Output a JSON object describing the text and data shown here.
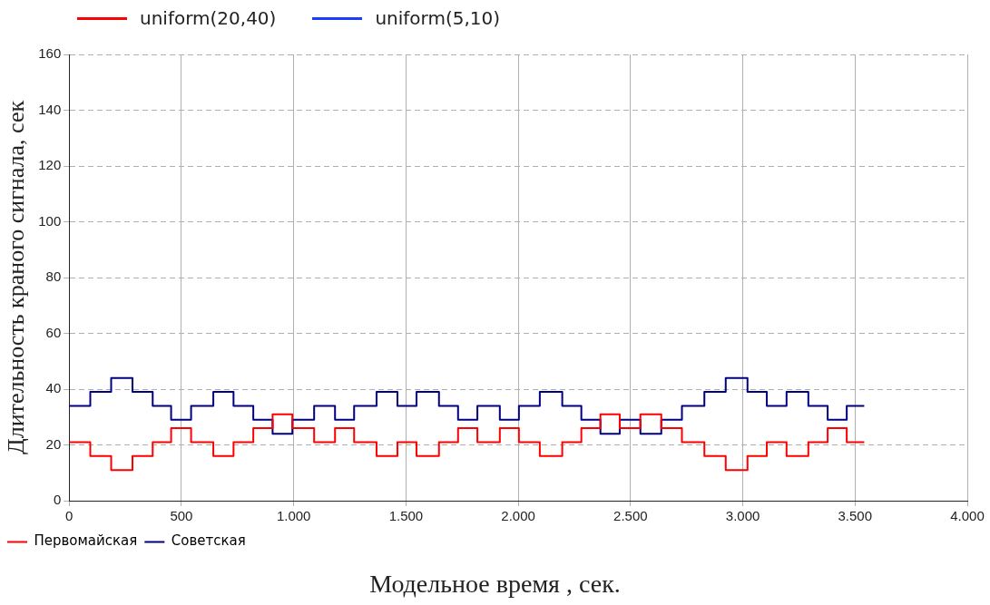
{
  "chart_data": {
    "type": "step",
    "xlabel": "Модельное время , сек.",
    "ylabel": "Длительность краного сигнала, сек",
    "annotations": [
      "uniform(20,40)",
      "uniform(5,10)"
    ],
    "x": [
      0,
      94,
      187,
      282,
      372,
      454,
      543,
      642,
      732,
      820,
      906,
      994,
      1091,
      1184,
      1269,
      1369,
      1462,
      1547,
      1647,
      1732,
      1818,
      1918,
      2003,
      2096,
      2196,
      2281,
      2366,
      2452,
      2544,
      2637,
      2729,
      2829,
      2924,
      3021,
      3107,
      3195,
      3292,
      3378,
      3463,
      3541
    ],
    "series": [
      {
        "name": "Первомайская",
        "color": "#ff0000",
        "values": [
          21,
          16,
          11,
          16,
          21,
          26,
          21,
          16,
          21,
          26,
          31,
          26,
          21,
          26,
          21,
          16,
          21,
          16,
          21,
          26,
          21,
          26,
          21,
          16,
          21,
          26,
          31,
          26,
          31,
          26,
          21,
          16,
          11,
          16,
          21,
          16,
          21,
          26,
          21,
          21
        ]
      },
      {
        "name": "Советская",
        "color": "#000080",
        "values": [
          34,
          39,
          44,
          39,
          34,
          29,
          34,
          39,
          34,
          29,
          24,
          29,
          34,
          29,
          34,
          39,
          34,
          39,
          34,
          29,
          34,
          29,
          34,
          39,
          34,
          29,
          24,
          29,
          24,
          29,
          34,
          39,
          44,
          39,
          34,
          39,
          34,
          29,
          34,
          34
        ]
      }
    ],
    "xlim": [
      0,
      4000
    ],
    "xticks": [
      0,
      500,
      {
        "value": 1000,
        "label": "1.000"
      },
      {
        "value": 1500,
        "label": "1.500"
      },
      {
        "value": 2000,
        "label": "2.000"
      },
      {
        "value": 2500,
        "label": "2.500"
      },
      {
        "value": 3000,
        "label": "3.000"
      },
      {
        "value": 3500,
        "label": "3.500"
      },
      {
        "value": 4000,
        "label": "4.000"
      }
    ],
    "ylim": [
      0,
      160
    ],
    "yticks": [
      0,
      20,
      40,
      60,
      80,
      100,
      120,
      140,
      160
    ],
    "grid": true,
    "legend": "bottom left",
    "line_style": "solid",
    "marker": "none"
  }
}
